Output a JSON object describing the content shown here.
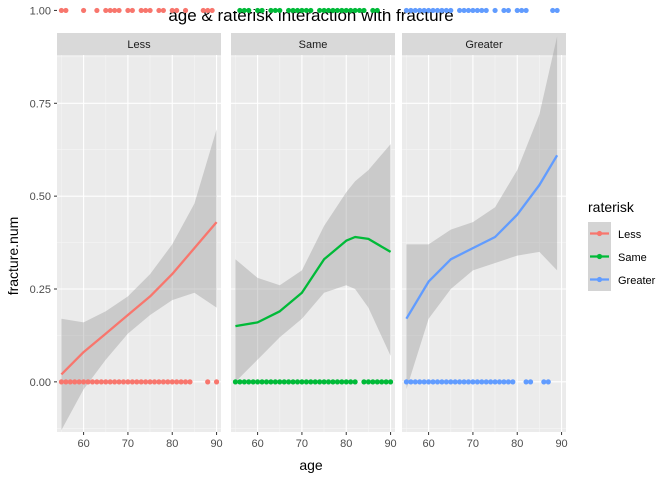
{
  "chart_data": {
    "type": "scatter",
    "title": "age & raterisk  interaction with fracture",
    "xlabel": "age",
    "ylabel": "fracture.num",
    "xlim": [
      54,
      91
    ],
    "ylim": [
      -0.135,
      0.88
    ],
    "x_ticks": [
      60,
      70,
      80,
      90
    ],
    "y_ticks": [
      0.0,
      0.25,
      0.5,
      0.75,
      1.0
    ],
    "y_tick_labels": [
      "0.00",
      "0.25",
      "0.50",
      "0.75",
      "1.00"
    ],
    "legend": {
      "title": "raterisk",
      "position": "right"
    },
    "grid": true,
    "panels": [
      {
        "label": "Less",
        "color": "#F8766D",
        "points_y1": [
          55,
          56,
          60,
          63,
          65,
          66,
          67,
          68,
          70,
          71,
          73,
          74,
          75,
          77,
          78,
          80,
          81,
          83,
          87,
          88,
          89
        ],
        "points_y0": [
          55,
          56,
          57,
          58,
          59,
          60,
          61,
          62,
          63,
          64,
          65,
          66,
          67,
          68,
          69,
          70,
          71,
          72,
          73,
          74,
          75,
          76,
          77,
          78,
          79,
          80,
          81,
          82,
          83,
          84,
          88,
          90
        ],
        "smooth": {
          "x": [
            55,
            60,
            65,
            70,
            75,
            80,
            85,
            90
          ],
          "y": [
            0.02,
            0.08,
            0.13,
            0.18,
            0.23,
            0.29,
            0.36,
            0.43
          ]
        },
        "band": {
          "x": [
            55,
            60,
            65,
            70,
            75,
            80,
            85,
            90
          ],
          "lo": [
            -0.13,
            -0.02,
            0.06,
            0.13,
            0.18,
            0.22,
            0.24,
            0.2
          ],
          "hi": [
            0.17,
            0.16,
            0.19,
            0.23,
            0.29,
            0.37,
            0.48,
            0.68
          ]
        }
      },
      {
        "label": "Same",
        "color": "#00BA38",
        "points_y1": [
          56,
          57,
          58,
          60,
          61,
          63,
          64,
          65,
          67,
          68,
          69,
          70,
          71,
          72,
          74,
          75,
          76,
          77,
          78,
          79,
          80,
          81,
          82,
          83,
          84,
          86,
          87
        ],
        "points_y0": [
          55,
          56,
          57,
          58,
          59,
          60,
          61,
          62,
          63,
          64,
          65,
          66,
          67,
          68,
          69,
          70,
          71,
          72,
          73,
          74,
          75,
          76,
          77,
          78,
          79,
          80,
          81,
          82,
          84,
          85,
          86,
          87,
          88,
          89,
          90
        ],
        "smooth": {
          "x": [
            55,
            60,
            65,
            70,
            75,
            80,
            82,
            85,
            90
          ],
          "y": [
            0.15,
            0.16,
            0.19,
            0.24,
            0.33,
            0.38,
            0.39,
            0.385,
            0.35
          ]
        },
        "band": {
          "x": [
            55,
            60,
            65,
            70,
            75,
            80,
            82,
            85,
            90
          ],
          "lo": [
            0.0,
            0.06,
            0.12,
            0.17,
            0.24,
            0.26,
            0.25,
            0.2,
            0.07
          ],
          "hi": [
            0.33,
            0.28,
            0.26,
            0.3,
            0.42,
            0.51,
            0.54,
            0.57,
            0.64
          ]
        }
      },
      {
        "label": "Greater",
        "color": "#619CFF",
        "points_y1": [
          55,
          56,
          57,
          58,
          59,
          60,
          61,
          62,
          63,
          64,
          65,
          67,
          68,
          69,
          70,
          71,
          72,
          73,
          75,
          77,
          78,
          80,
          81,
          82,
          88,
          89
        ],
        "points_y0": [
          55,
          56,
          57,
          58,
          59,
          60,
          61,
          62,
          63,
          64,
          65,
          66,
          67,
          68,
          69,
          70,
          71,
          72,
          73,
          74,
          75,
          76,
          77,
          78,
          79,
          82,
          83,
          86,
          87
        ],
        "smooth": {
          "x": [
            55,
            60,
            65,
            70,
            75,
            80,
            85,
            89
          ],
          "y": [
            0.17,
            0.27,
            0.33,
            0.36,
            0.39,
            0.45,
            0.53,
            0.61
          ]
        },
        "band": {
          "x": [
            55,
            60,
            65,
            70,
            75,
            80,
            85,
            89
          ],
          "lo": [
            -0.02,
            0.17,
            0.25,
            0.3,
            0.32,
            0.34,
            0.35,
            0.3
          ],
          "hi": [
            0.37,
            0.37,
            0.41,
            0.43,
            0.47,
            0.57,
            0.72,
            0.93
          ]
        }
      }
    ]
  }
}
